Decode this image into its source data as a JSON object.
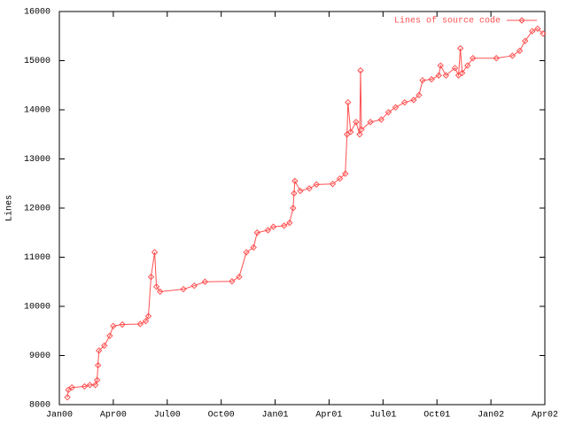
{
  "chart_data": {
    "type": "line",
    "y_label": "Lines",
    "xticks": [
      {
        "value": 0,
        "label": "Jan00"
      },
      {
        "value": 3,
        "label": "Apr00"
      },
      {
        "value": 6,
        "label": "Jul00"
      },
      {
        "value": 9,
        "label": "Oct00"
      },
      {
        "value": 12,
        "label": "Jan01"
      },
      {
        "value": 15,
        "label": "Apr01"
      },
      {
        "value": 18,
        "label": "Jul01"
      },
      {
        "value": 21,
        "label": "Oct01"
      },
      {
        "value": 24,
        "label": "Jan02"
      },
      {
        "value": 27,
        "label": "Apr02"
      }
    ],
    "xlim": [
      0,
      27
    ],
    "ylim": [
      8000,
      16000
    ],
    "yticks": [
      8000,
      9000,
      10000,
      11000,
      12000,
      13000,
      14000,
      15000,
      16000
    ],
    "legend": "top-right",
    "series": [
      {
        "name": "Lines of source code",
        "color": "#ff5050",
        "x": [
          0.45,
          0.5,
          0.7,
          1.4,
          1.7,
          2.0,
          2.1,
          2.15,
          2.2,
          2.5,
          2.8,
          3.0,
          3.5,
          4.5,
          4.8,
          4.95,
          5.1,
          5.3,
          5.4,
          5.6,
          6.9,
          7.5,
          8.1,
          9.6,
          10.0,
          10.4,
          10.8,
          11.0,
          11.6,
          11.9,
          12.5,
          12.8,
          13.0,
          13.05,
          13.1,
          13.4,
          13.9,
          14.3,
          15.2,
          15.6,
          15.9,
          16.0,
          16.05,
          16.2,
          16.5,
          16.7,
          16.75,
          16.8,
          17.3,
          17.9,
          18.3,
          18.7,
          19.2,
          19.7,
          20.0,
          20.2,
          20.7,
          21.1,
          21.2,
          21.5,
          22.0,
          22.2,
          22.3,
          22.4,
          22.7,
          23.0,
          24.3,
          25.2,
          25.6,
          25.9,
          26.3,
          26.6,
          26.9
        ],
        "values": [
          8150,
          8300,
          8350,
          8370,
          8400,
          8400,
          8500,
          8800,
          9100,
          9200,
          9400,
          9600,
          9630,
          9640,
          9700,
          9800,
          10600,
          11100,
          10400,
          10300,
          10350,
          10420,
          10500,
          10510,
          10600,
          11100,
          11200,
          11500,
          11550,
          11620,
          11640,
          11700,
          12000,
          12300,
          12550,
          12350,
          12400,
          12480,
          12490,
          12600,
          12700,
          13500,
          14150,
          13550,
          13750,
          13500,
          14800,
          13600,
          13750,
          13800,
          13950,
          14050,
          14150,
          14200,
          14300,
          14600,
          14620,
          14700,
          14900,
          14700,
          14850,
          14700,
          15250,
          14750,
          14900,
          15050,
          15050,
          15100,
          15200,
          15400,
          15600,
          15650,
          15550
        ]
      }
    ]
  }
}
